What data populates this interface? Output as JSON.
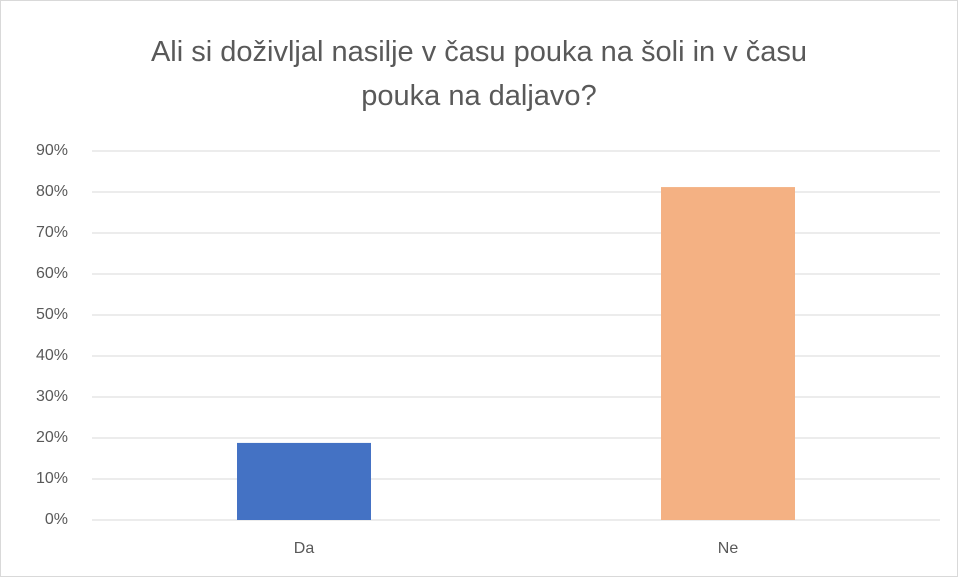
{
  "chart_data": {
    "type": "bar",
    "title": "Ali si doživljal nasilje v času pouka na šoli in v času pouka na daljavo?",
    "categories": [
      "Da",
      "Ne"
    ],
    "values": [
      18.8,
      81.2
    ],
    "colors": [
      "#4472c4",
      "#f4b183"
    ],
    "ylim": [
      0,
      90
    ],
    "yticks": [
      {
        "value": 0,
        "label": "0%"
      },
      {
        "value": 10,
        "label": "10%"
      },
      {
        "value": 20,
        "label": "20%"
      },
      {
        "value": 30,
        "label": "30%"
      },
      {
        "value": 40,
        "label": "40%"
      },
      {
        "value": 50,
        "label": "50%"
      },
      {
        "value": 60,
        "label": "60%"
      },
      {
        "value": 70,
        "label": "70%"
      },
      {
        "value": 80,
        "label": "80%"
      },
      {
        "value": 90,
        "label": "90%"
      }
    ],
    "grid": true
  }
}
